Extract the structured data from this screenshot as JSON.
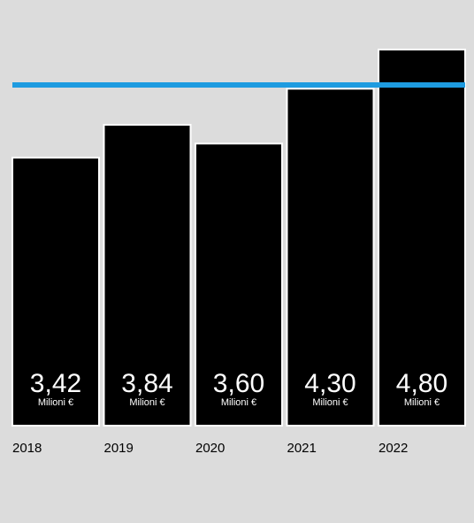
{
  "chart_data": {
    "type": "bar",
    "categories": [
      "2018",
      "2019",
      "2020",
      "2021",
      "2022"
    ],
    "values": [
      3.42,
      3.84,
      3.6,
      4.3,
      4.8
    ],
    "value_labels": [
      "3,42",
      "3,84",
      "3,60",
      "4,30",
      "4,80"
    ],
    "unit_label": "Milioni €",
    "reference_line": {
      "value": 4.3
    },
    "ylim": [
      0,
      4.8
    ],
    "colors": {
      "bar": "#000000",
      "bar_outline": "#ffffff",
      "background": "#dcdcdc",
      "reference_line": "#1e9be0",
      "value_text": "#ffffff",
      "category_text": "#000000"
    },
    "title": "",
    "xlabel": "",
    "ylabel": "",
    "grid": false,
    "legend": "none"
  }
}
